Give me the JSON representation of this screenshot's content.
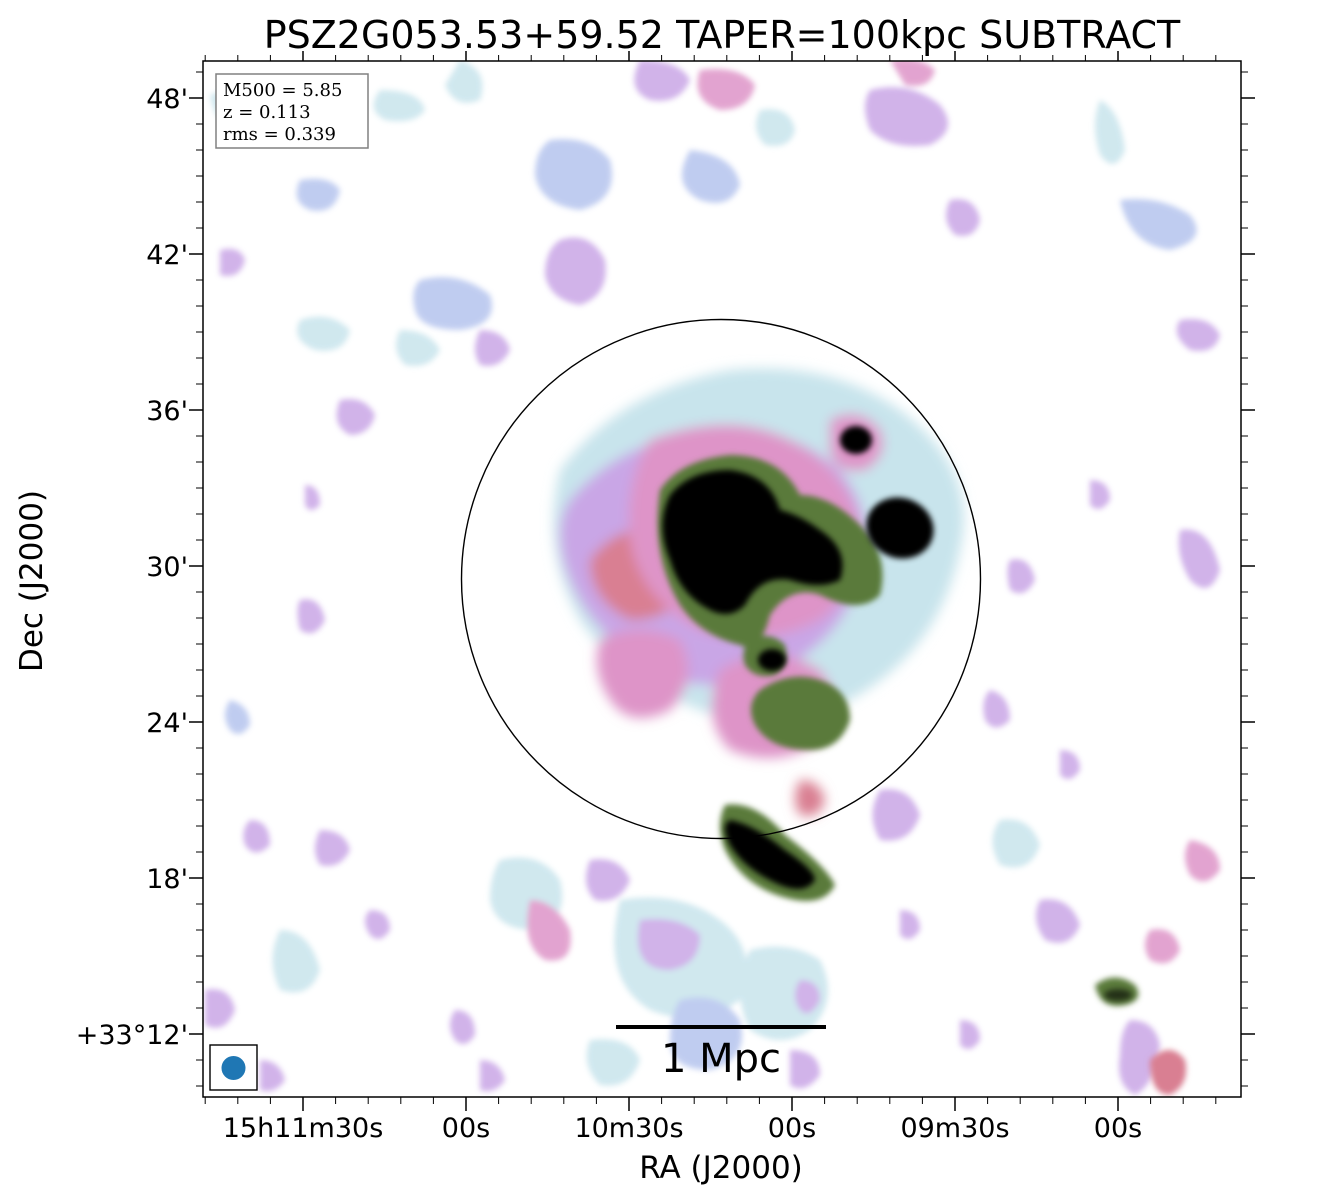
{
  "title": "PSZ2G053.53+59.52 TAPER=100kpc SUBTRACT",
  "axes": {
    "xlabel": "RA (J2000)",
    "ylabel": "Dec (J2000)",
    "x_ticks": [
      "15h11m30s",
      "00s",
      "10m30s",
      "00s",
      "09m30s",
      "00s"
    ],
    "y_ticks": [
      "48'",
      "42'",
      "36'",
      "30'",
      "24'",
      "18'",
      "+33°12'"
    ]
  },
  "info_box": {
    "lines": [
      "M500 = 5.85",
      "z = 0.113",
      "rms = 0.339"
    ]
  },
  "scalebar": {
    "label": "1 Mpc"
  },
  "colors": {
    "frame": "#000000",
    "beam": "#1f77b4",
    "circle": "#000000",
    "colormap": [
      "#ffffff",
      "#c8e4ec",
      "#b5c4ee",
      "#c9a6e6",
      "#de94c8",
      "#d97f92",
      "#5a7a3a",
      "#2a3d1a",
      "#000000"
    ]
  },
  "image": {
    "type": "radio continuum map",
    "colormap": "cubehelix-like (white → light blue → lavender → pink → green → black)"
  }
}
